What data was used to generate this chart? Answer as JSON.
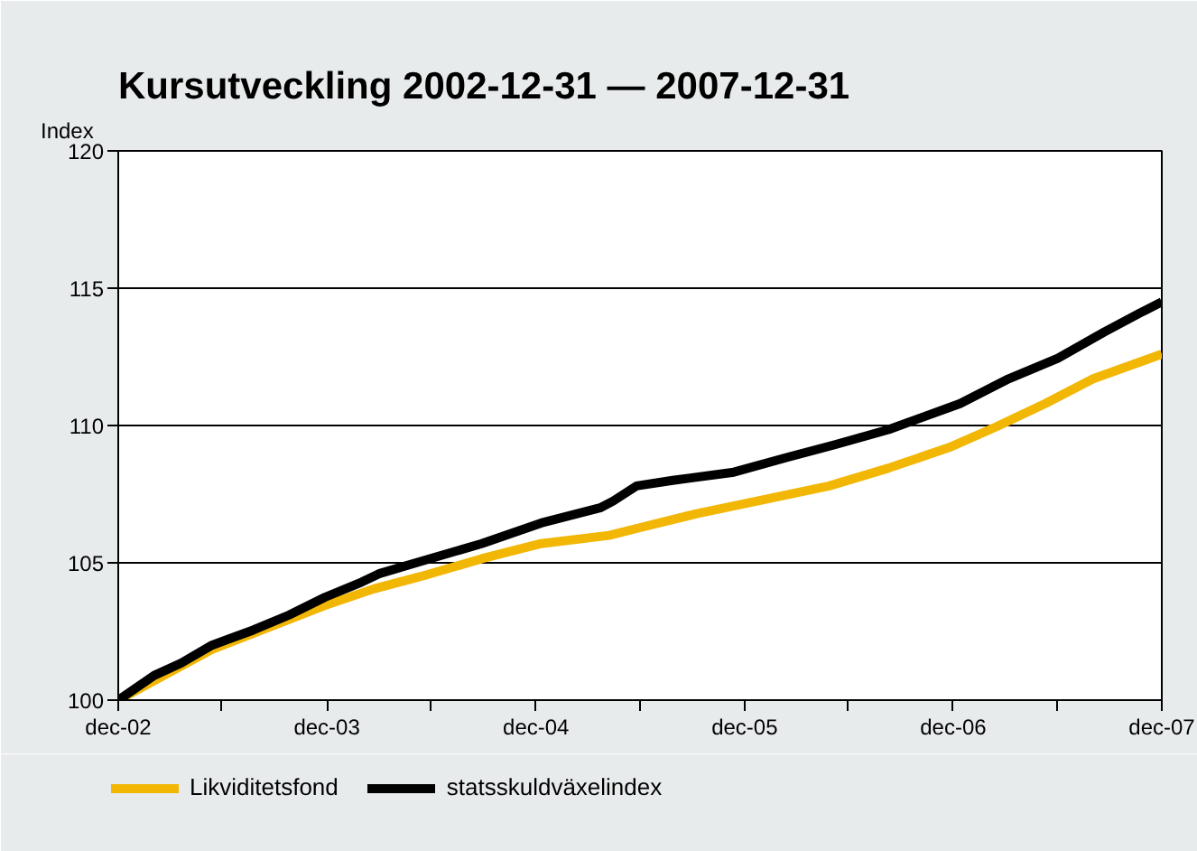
{
  "chart_data": {
    "type": "line",
    "title": "Kursutveckling 2002-12-31 — 2007-12-31",
    "ylabel": "Index",
    "xlim": [
      "2002-12-31",
      "2007-12-31"
    ],
    "xticks": [
      {
        "value": "2002-12-31",
        "label": "dec-02"
      },
      {
        "value": "2003-06-30",
        "label": null
      },
      {
        "value": "2003-12-31",
        "label": "dec-03"
      },
      {
        "value": "2004-06-30",
        "label": null
      },
      {
        "value": "2004-12-31",
        "label": "dec-04"
      },
      {
        "value": "2005-06-30",
        "label": null
      },
      {
        "value": "2005-12-31",
        "label": "dec-05"
      },
      {
        "value": "2006-06-30",
        "label": null
      },
      {
        "value": "2006-12-31",
        "label": "dec-06"
      },
      {
        "value": "2007-06-30",
        "label": null
      },
      {
        "value": "2007-12-31",
        "label": "dec-07"
      }
    ],
    "ylim": [
      100,
      120
    ],
    "yticks": [
      100,
      105,
      110,
      115,
      120
    ],
    "grid": "y",
    "legend": "bottom",
    "series": [
      {
        "name": "Likviditetsfond",
        "color": "#f2b705",
        "x": [
          "2002-12-31",
          "2003-06-13",
          "2003-12-28",
          "2004-03-22",
          "2004-06-12",
          "2004-09-27",
          "2005-01-09",
          "2005-05-08",
          "2005-06-25",
          "2005-10-10",
          "2006-01-22",
          "2006-05-28",
          "2006-09-09",
          "2006-12-24",
          "2007-03-16",
          "2007-06-10",
          "2007-09-02",
          "2007-12-31"
        ],
        "values": [
          100,
          101.85,
          103.45,
          104.05,
          104.5,
          105.15,
          105.7,
          106.0,
          106.25,
          106.8,
          107.25,
          107.8,
          108.45,
          109.2,
          109.95,
          110.8,
          111.7,
          112.6
        ]
      },
      {
        "name": "statsskuldväxelindex",
        "color": "#000000",
        "x": [
          "2002-12-31",
          "2003-03-04",
          "2003-04-20",
          "2003-06-13",
          "2003-08-24",
          "2003-10-26",
          "2003-12-28",
          "2004-03-01",
          "2004-03-31",
          "2004-06-12",
          "2004-09-27",
          "2005-01-09",
          "2005-04-22",
          "2005-05-15",
          "2005-06-25",
          "2005-08-27",
          "2005-12-12",
          "2006-03-17",
          "2006-06-07",
          "2006-09-09",
          "2007-01-12",
          "2007-04-07",
          "2007-07-02",
          "2007-09-21",
          "2007-11-23",
          "2007-12-31"
        ],
        "values": [
          100,
          100.9,
          101.35,
          102.0,
          102.55,
          103.1,
          103.75,
          104.3,
          104.6,
          105.05,
          105.7,
          106.45,
          107.0,
          107.25,
          107.8,
          108.0,
          108.3,
          108.85,
          109.3,
          109.85,
          110.8,
          111.7,
          112.45,
          113.4,
          114.1,
          114.5
        ]
      }
    ]
  }
}
